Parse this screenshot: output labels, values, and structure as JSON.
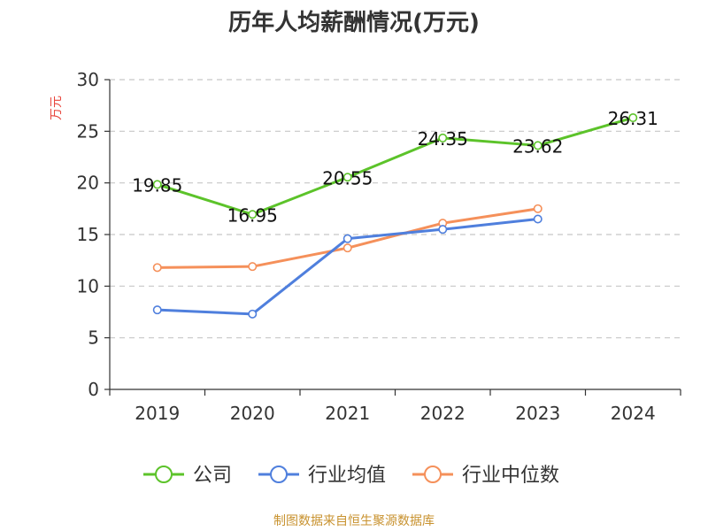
{
  "source_note": "制图数据来自恒生聚源数据库",
  "chart_data": {
    "type": "line",
    "title": "历年人均薪酬情况(万元)",
    "ylabel": "万元",
    "xlabel": "",
    "categories": [
      "2019",
      "2020",
      "2021",
      "2022",
      "2023",
      "2024"
    ],
    "ylim": [
      0,
      30
    ],
    "yticks": [
      0,
      5,
      10,
      15,
      20,
      25,
      30
    ],
    "grid": true,
    "legend_position": "bottom",
    "series": [
      {
        "name": "公司",
        "color": "#5cc32a",
        "values": [
          19.85,
          16.95,
          20.55,
          24.35,
          23.62,
          26.31
        ],
        "labels": [
          "19.85",
          "16.95",
          "20.55",
          "24.35",
          "23.62",
          "26.31"
        ],
        "show_labels": true
      },
      {
        "name": "行业均值",
        "color": "#4f7fdd",
        "values": [
          7.7,
          7.3,
          14.6,
          15.5,
          16.5,
          null
        ],
        "show_labels": false
      },
      {
        "name": "行业中位数",
        "color": "#f5905a",
        "values": [
          11.8,
          11.9,
          13.7,
          16.1,
          17.5,
          null
        ],
        "show_labels": false
      }
    ]
  }
}
